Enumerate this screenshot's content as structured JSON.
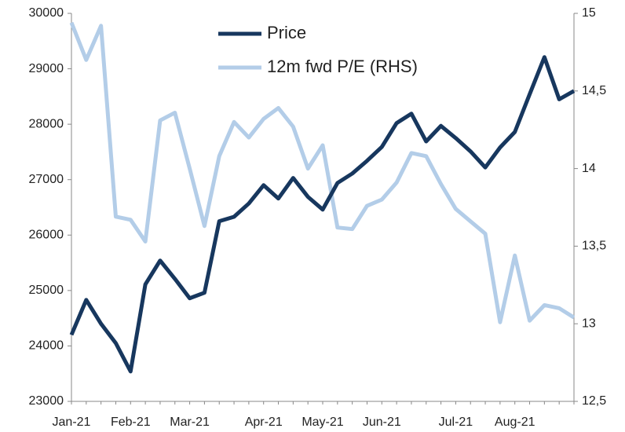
{
  "chart_data": {
    "type": "line",
    "categories": [
      "Jan-21",
      null,
      null,
      null,
      "Feb-21",
      null,
      null,
      null,
      "Mar-21",
      null,
      null,
      null,
      null,
      "Apr-21",
      null,
      null,
      null,
      "May-21",
      null,
      null,
      null,
      "Jun-21",
      null,
      null,
      null,
      null,
      "Jul-21",
      null,
      null,
      null,
      "Aug-21",
      null,
      null,
      null,
      null
    ],
    "series": [
      {
        "name": "Price",
        "color": "#17375e",
        "values": [
          24200,
          24830,
          24400,
          24050,
          23540,
          25110,
          25540,
          25210,
          24860,
          24960,
          26250,
          26330,
          26570,
          26900,
          26660,
          27030,
          26690,
          26460,
          26940,
          27110,
          27340,
          27590,
          28020,
          28190,
          27690,
          27970,
          27750,
          27510,
          27220,
          27580,
          27860,
          28540,
          29210,
          28450,
          28600
        ]
      },
      {
        "name": "12m fwd P/E (RHS)",
        "color": "#b3cde8",
        "axis": "y2",
        "values": [
          14.94,
          14.7,
          14.92,
          13.69,
          13.67,
          13.53,
          14.31,
          14.36,
          14.0,
          13.63,
          14.08,
          14.3,
          14.2,
          14.32,
          14.39,
          14.27,
          14.0,
          14.15,
          13.62,
          13.61,
          13.76,
          13.8,
          13.91,
          14.1,
          14.08,
          13.9,
          13.74,
          13.66,
          13.58,
          13.01,
          13.44,
          13.02,
          13.12,
          13.1,
          13.04
        ]
      }
    ],
    "ylim": [
      23000,
      30000
    ],
    "yticks": [
      23000,
      24000,
      25000,
      26000,
      27000,
      28000,
      29000,
      30000
    ],
    "y2lim": [
      12.5,
      15
    ],
    "y2ticks": [
      {
        "value": 12.5,
        "label": "12,5"
      },
      13,
      {
        "value": 13.5,
        "label": "13,5"
      },
      14,
      {
        "value": 14.5,
        "label": "14,5"
      },
      15
    ],
    "legend": "top"
  }
}
